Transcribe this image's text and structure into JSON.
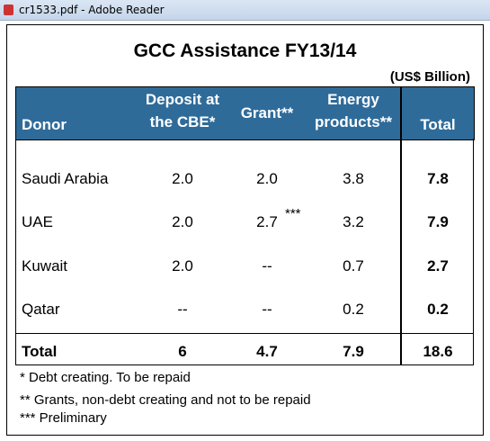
{
  "window": {
    "title": "cr1533.pdf - Adobe Reader"
  },
  "table": {
    "title": "GCC Assistance FY13/14",
    "unit": "(US$ Billion)",
    "headers": [
      [
        "Donor"
      ],
      [
        "Deposit at",
        "the CBE*"
      ],
      [
        "Grant**"
      ],
      [
        "Energy",
        "products**"
      ],
      [
        "Total"
      ]
    ],
    "rows": [
      [
        "Saudi Arabia",
        "2.0",
        "2.0",
        "3.8",
        "7.8"
      ],
      [
        "UAE",
        "2.0",
        {
          "value": "2.7",
          "marker": "***"
        },
        "3.2",
        "7.9"
      ],
      [
        "Kuwait",
        "2.0",
        "--",
        "0.7",
        "2.7"
      ],
      [
        "Qatar",
        "--",
        "--",
        "0.2",
        "0.2"
      ]
    ],
    "total": [
      "Total",
      "6",
      "4.7",
      "7.9",
      "18.6"
    ]
  },
  "notes": [
    "* Debt creating. To be repaid",
    "** Grants, non-debt creating and not to be repaid",
    "*** Preliminary"
  ]
}
